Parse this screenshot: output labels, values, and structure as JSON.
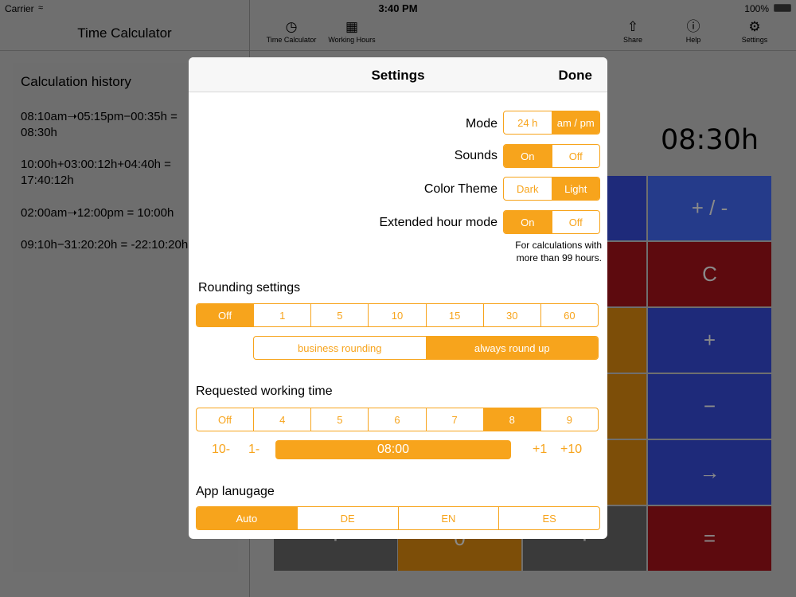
{
  "status": {
    "carrier": "Carrier",
    "time": "3:40 PM",
    "battery": "100%"
  },
  "left": {
    "nav_title": "Time Calculator",
    "history_title": "Calculation history",
    "history": [
      "08:10am➝05:15pm−00:35h =",
      "08:30h",
      "10:00h+03:00:12h+04:40h =",
      "17:40:12h",
      "02:00am➝12:00pm = 10:00h",
      "09:10h−31:20:20h = -22:10:20h"
    ]
  },
  "toolbar": {
    "time_calc_label": "Time Calculator",
    "working_hours_label": "Working Hours",
    "share_label": "Share",
    "help_label": "Help",
    "settings_label": "Settings"
  },
  "calculator": {
    "display": "08:30h",
    "keys": {
      "plus_minus": "+ / -",
      "clear": "C",
      "plus": "+",
      "minus": "−",
      "arrow": "→",
      "equals": "=",
      "zero": "0",
      "dot1": "·",
      "dot2": "·"
    }
  },
  "settings": {
    "title": "Settings",
    "done": "Done",
    "mode": {
      "label": "Mode",
      "options": [
        "24 h",
        "am / pm"
      ],
      "selected": "am / pm"
    },
    "sounds": {
      "label": "Sounds",
      "options": [
        "On",
        "Off"
      ],
      "selected": "On"
    },
    "theme": {
      "label": "Color Theme",
      "options": [
        "Dark",
        "Light"
      ],
      "selected": "Light"
    },
    "extended": {
      "label": "Extended hour mode",
      "options": [
        "On",
        "Off"
      ],
      "selected": "On",
      "note_line1": "For calculations with",
      "note_line2": "more than 99 hours."
    },
    "rounding": {
      "label": "Rounding settings",
      "options": [
        "Off",
        "1",
        "5",
        "10",
        "15",
        "30",
        "60"
      ],
      "selected": "Off",
      "method_options": [
        "business rounding",
        "always round up"
      ],
      "method_selected": "always round up"
    },
    "working_time": {
      "label": "Requested working time",
      "options": [
        "Off",
        "4",
        "5",
        "6",
        "7",
        "8",
        "9"
      ],
      "selected": "8",
      "dec10": "10-",
      "dec1": "1-",
      "value": "08:00",
      "inc1": "+1",
      "inc10": "+10"
    },
    "language": {
      "label": "App lanugage",
      "options": [
        "Auto",
        "DE",
        "EN",
        "ES"
      ],
      "selected": "Auto"
    }
  },
  "colors": {
    "accent": "#f7a41c",
    "key_blue": "#1e2a7a",
    "key_blue_light": "#253b8a",
    "key_red": "#5d0a0e",
    "key_orange": "#7d4e08",
    "key_gray": "#3a3a3a"
  }
}
